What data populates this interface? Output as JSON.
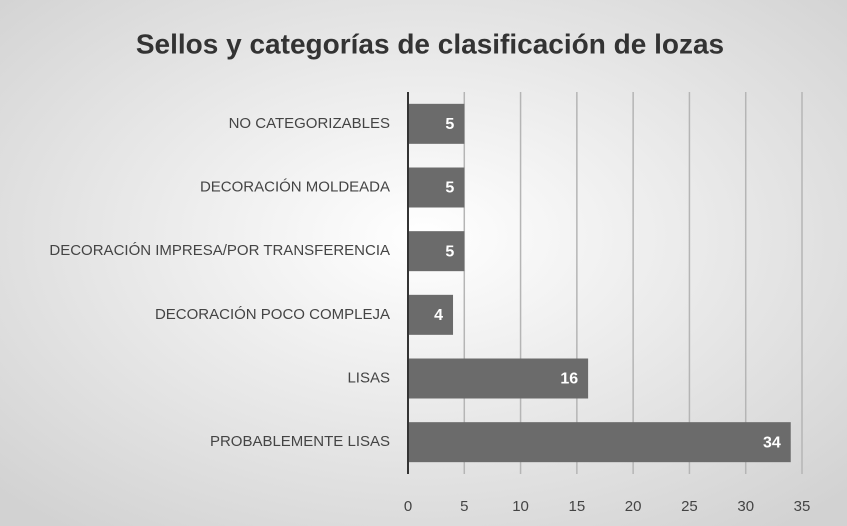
{
  "chart_data": {
    "type": "barh",
    "title": "Sellos y categorías de clasificación de lozas",
    "categories": [
      "NO CATEGORIZABLES",
      "DECORACIÓN MOLDEADA",
      "DECORACIÓN IMPRESA/POR TRANSFERENCIA",
      "DECORACIÓN POCO COMPLEJA",
      "LISAS",
      "PROBABLEMENTE LISAS"
    ],
    "values": [
      5,
      5,
      5,
      4,
      16,
      34
    ],
    "color": "#6b6b6b",
    "xlim": [
      0,
      35
    ],
    "xticks": [
      0,
      5,
      10,
      15,
      20,
      25,
      30,
      35
    ],
    "grid": true
  }
}
